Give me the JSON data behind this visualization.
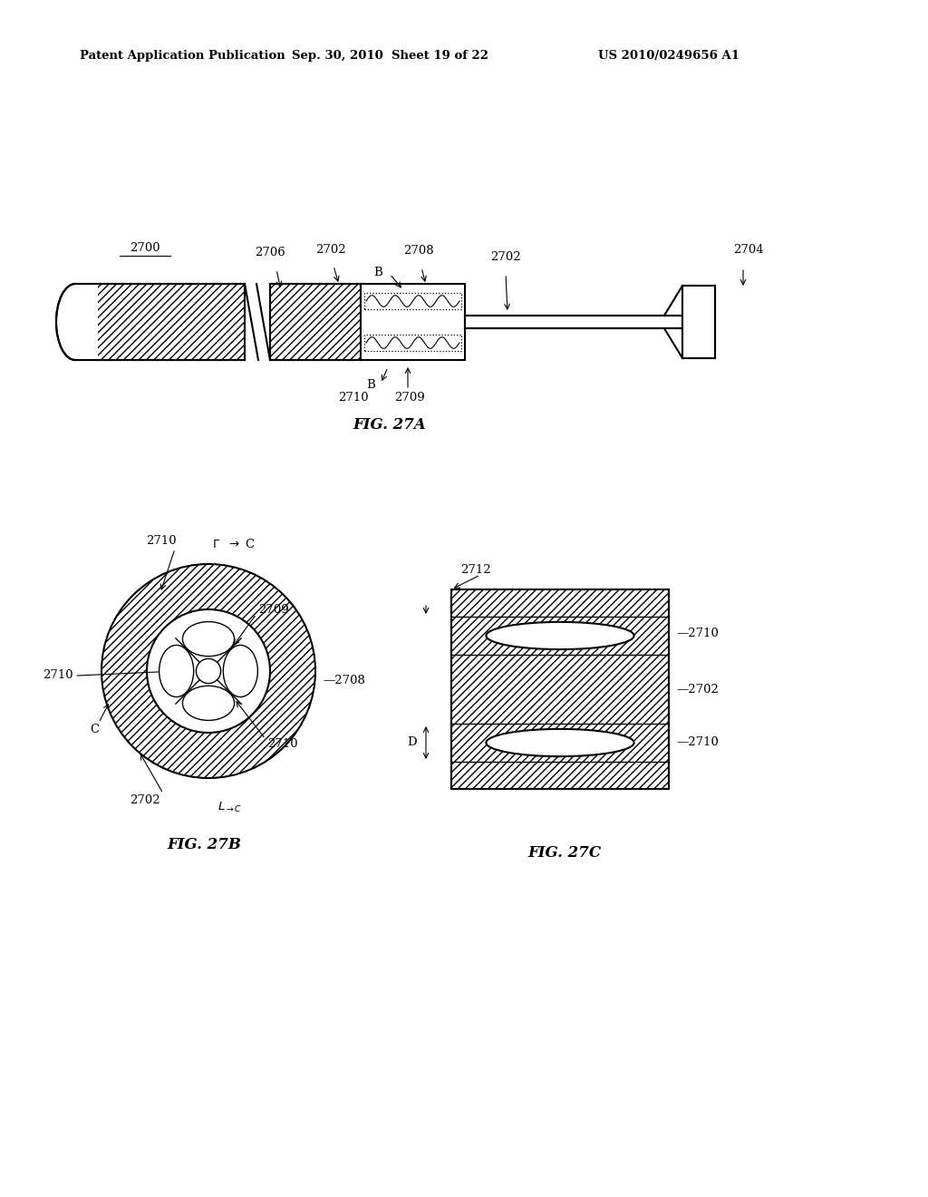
{
  "bg_color": "#ffffff",
  "header_left": "Patent Application Publication",
  "header_mid": "Sep. 30, 2010  Sheet 19 of 22",
  "header_right": "US 2010/0249656 A1",
  "fig27a_label": "FIG. 27A",
  "fig27b_label": "FIG. 27B",
  "fig27c_label": "FIG. 27C",
  "page_width": 10.24,
  "page_height": 13.2,
  "dpi": 100
}
